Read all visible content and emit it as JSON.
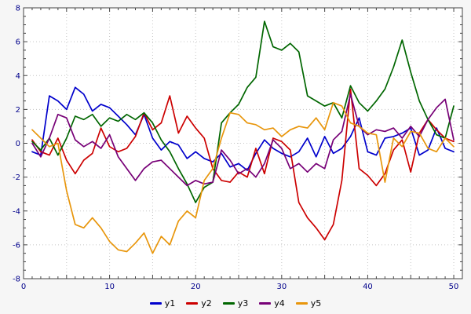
{
  "chart_data": {
    "type": "line",
    "title": "",
    "xlabel": "",
    "ylabel": "",
    "xlim": [
      0,
      51
    ],
    "ylim": [
      -8,
      8
    ],
    "xticks": [
      0,
      10,
      20,
      30,
      40,
      50
    ],
    "yticks": [
      -8,
      -6,
      -4,
      -2,
      0,
      2,
      4,
      6,
      8
    ],
    "grid": true,
    "legend_position": "bottom",
    "x": [
      1,
      2,
      3,
      4,
      5,
      6,
      7,
      8,
      9,
      10,
      11,
      12,
      13,
      14,
      15,
      16,
      17,
      18,
      19,
      20,
      21,
      22,
      23,
      24,
      25,
      26,
      27,
      28,
      29,
      30,
      31,
      32,
      33,
      34,
      35,
      36,
      37,
      38,
      39,
      40,
      41,
      42,
      43,
      44,
      45,
      46,
      47,
      48,
      49,
      50
    ],
    "series": [
      {
        "name": "y1",
        "color": "#0000cc",
        "values": [
          -0.5,
          -0.7,
          2.8,
          2.5,
          2.0,
          3.3,
          2.9,
          1.9,
          2.3,
          2.1,
          1.6,
          1.1,
          0.5,
          1.7,
          0.3,
          -0.4,
          0.1,
          -0.1,
          -0.9,
          -0.5,
          -0.9,
          -1.1,
          -0.6,
          -1.4,
          -1.2,
          -1.6,
          -0.6,
          0.2,
          -0.3,
          -0.6,
          -0.8,
          -0.5,
          0.3,
          -0.8,
          0.4,
          -0.6,
          -0.3,
          0.4,
          1.5,
          -0.5,
          -0.7,
          0.3,
          0.4,
          0.6,
          0.9,
          -0.7,
          -0.4,
          0.9,
          -0.3,
          -0.5
        ]
      },
      {
        "name": "y2",
        "color": "#cc0000",
        "values": [
          0.2,
          -0.5,
          -0.7,
          0.3,
          -1.0,
          -1.8,
          -1.0,
          -0.6,
          0.9,
          -0.2,
          -0.5,
          -0.3,
          0.4,
          1.8,
          0.8,
          1.2,
          2.8,
          0.6,
          1.6,
          0.9,
          0.3,
          -1.5,
          -2.2,
          -2.3,
          -1.7,
          -2.0,
          -0.3,
          -1.8,
          0.3,
          0.1,
          -0.4,
          -3.5,
          -4.4,
          -5.0,
          -5.7,
          -4.8,
          -2.2,
          3.2,
          -1.5,
          -1.9,
          -2.5,
          -1.8,
          -0.4,
          0.2,
          -1.7,
          0.6,
          1.4,
          0.8,
          0.3,
          0.1
        ]
      },
      {
        "name": "y3",
        "color": "#006600",
        "values": [
          0.1,
          -0.4,
          0.3,
          -0.7,
          0.3,
          1.6,
          1.4,
          1.7,
          1.0,
          1.5,
          1.3,
          1.7,
          1.4,
          1.8,
          1.2,
          0.2,
          -0.5,
          -1.5,
          -2.4,
          -3.5,
          -2.6,
          -2.3,
          1.2,
          1.8,
          2.3,
          3.3,
          3.9,
          7.2,
          5.7,
          5.5,
          5.9,
          5.4,
          2.8,
          2.5,
          2.2,
          2.4,
          1.5,
          3.4,
          2.4,
          1.9,
          2.5,
          3.2,
          4.5,
          6.1,
          4.2,
          2.5,
          1.4,
          0.5,
          0.3,
          2.2
        ]
      },
      {
        "name": "y4",
        "color": "#770077",
        "values": [
          0.0,
          -0.8,
          0.3,
          1.7,
          1.5,
          0.2,
          -0.2,
          0.1,
          -0.3,
          0.5,
          -0.8,
          -1.5,
          -2.2,
          -1.5,
          -1.1,
          -1.0,
          -1.5,
          -2.0,
          -2.5,
          -2.2,
          -2.4,
          -2.3,
          -0.4,
          -1.0,
          -1.8,
          -1.5,
          -2.0,
          -1.2,
          0.2,
          -0.3,
          -1.5,
          -1.2,
          -1.7,
          -1.2,
          -1.5,
          0.2,
          0.7,
          2.9,
          1.0,
          0.5,
          0.8,
          0.7,
          0.9,
          0.3,
          1.0,
          0.4,
          1.4,
          2.1,
          2.6,
          0.2
        ]
      },
      {
        "name": "y5",
        "color": "#e8960c",
        "values": [
          0.8,
          0.3,
          -0.2,
          0.0,
          -2.8,
          -4.8,
          -5.0,
          -4.4,
          -5.0,
          -5.8,
          -6.3,
          -6.4,
          -5.9,
          -5.3,
          -6.5,
          -5.5,
          -6.0,
          -4.6,
          -4.0,
          -4.4,
          -2.2,
          -1.5,
          0.3,
          1.8,
          1.7,
          1.2,
          1.1,
          0.8,
          0.9,
          0.4,
          0.8,
          1.0,
          0.9,
          1.5,
          0.8,
          2.4,
          2.2,
          1.2,
          1.0,
          0.6,
          0.5,
          -2.3,
          0.3,
          -0.2,
          0.7,
          0.6,
          -0.3,
          -0.5,
          0.3,
          -0.2
        ]
      }
    ]
  }
}
